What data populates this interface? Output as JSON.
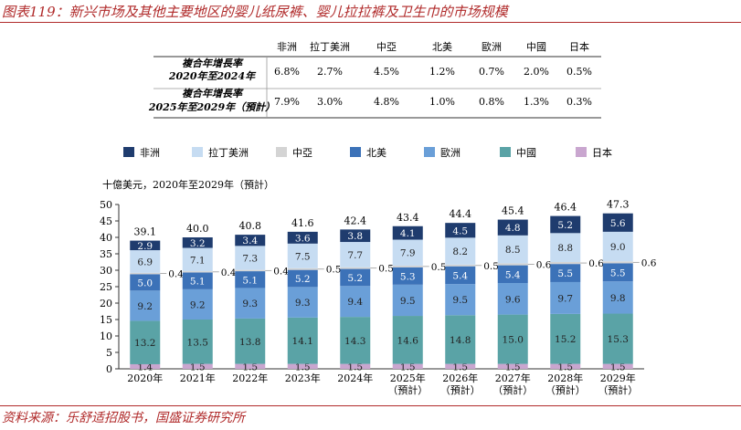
{
  "title": "图表119：新兴市场及其他主要地区的婴儿纸尿裤、婴儿拉拉裤及卫生巾的市场规模",
  "source": "资料来源：乐舒适招股书，国盛证券研究所",
  "table": {
    "columns": [
      "非洲",
      "拉丁美洲",
      "中亞",
      "北美",
      "歐洲",
      "中國",
      "日本"
    ],
    "rows": [
      {
        "label_line1": "複合年增長率",
        "label_line2": "2020年至2024年",
        "values": [
          "6.8%",
          "2.7%",
          "4.5%",
          "1.2%",
          "0.7%",
          "2.0%",
          "0.5%"
        ]
      },
      {
        "label_line1": "複合年增長率",
        "label_line2": "2025年至2029年（預計）",
        "values": [
          "7.9%",
          "3.0%",
          "4.8%",
          "1.0%",
          "0.8%",
          "1.3%",
          "0.3%"
        ]
      }
    ]
  },
  "chart_data": {
    "type": "bar",
    "stacked": true,
    "ylabel": "十億美元，2020年至2029年（預計）",
    "ylim": [
      0,
      50
    ],
    "yticks": [
      0,
      5,
      10,
      15,
      20,
      25,
      30,
      35,
      40,
      45,
      50
    ],
    "categories": [
      "2020年",
      "2021年",
      "2022年",
      "2023年",
      "2024年",
      "2025年",
      "2026年",
      "2027年",
      "2028年",
      "2029年"
    ],
    "category_sublabels": [
      "",
      "",
      "",
      "",
      "",
      "（預計）",
      "（預計）",
      "（預計）",
      "（預計）",
      "（預計）"
    ],
    "totals": [
      "39.1",
      "40.0",
      "40.8",
      "41.6",
      "42.4",
      "43.4",
      "44.4",
      "45.4",
      "46.4",
      "47.3"
    ],
    "legend_position": "top",
    "series": [
      {
        "name": "日本",
        "color": "#c9a6cf",
        "values": [
          1.4,
          1.5,
          1.5,
          1.5,
          1.5,
          1.5,
          1.5,
          1.5,
          1.5,
          1.5
        ]
      },
      {
        "name": "中國",
        "color": "#5aa3a6",
        "values": [
          13.2,
          13.5,
          13.8,
          14.1,
          14.3,
          14.6,
          14.8,
          15.0,
          15.2,
          15.3
        ]
      },
      {
        "name": "歐洲",
        "color": "#6a9fd8",
        "values": [
          9.2,
          9.2,
          9.3,
          9.3,
          9.4,
          9.5,
          9.5,
          9.6,
          9.7,
          9.8
        ]
      },
      {
        "name": "北美",
        "color": "#3c72b8",
        "values": [
          5.0,
          5.1,
          5.1,
          5.2,
          5.2,
          5.3,
          5.4,
          5.4,
          5.5,
          5.5
        ]
      },
      {
        "name": "中亞",
        "color": "#d4d4d4",
        "values": [
          0.4,
          0.4,
          0.4,
          0.5,
          0.5,
          0.5,
          0.5,
          0.6,
          0.6,
          0.6
        ]
      },
      {
        "name": "拉丁美洲",
        "color": "#c6dcf2",
        "values": [
          6.9,
          7.1,
          7.3,
          7.5,
          7.7,
          7.9,
          8.2,
          8.5,
          8.8,
          9.0
        ]
      },
      {
        "name": "非洲",
        "color": "#1f3c6e",
        "values": [
          2.9,
          3.2,
          3.4,
          3.6,
          3.8,
          4.1,
          4.5,
          4.8,
          5.2,
          5.6
        ]
      }
    ],
    "legend_order": [
      "非洲",
      "拉丁美洲",
      "中亞",
      "北美",
      "歐洲",
      "中國",
      "日本"
    ]
  }
}
